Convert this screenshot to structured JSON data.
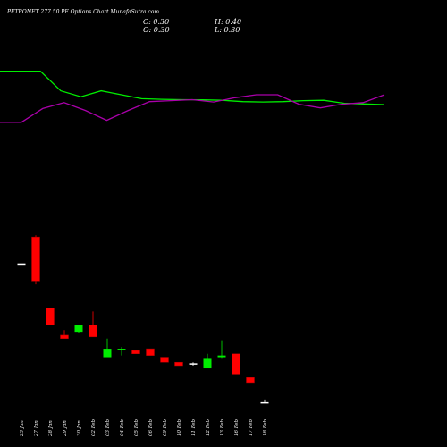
{
  "header": {
    "title": "PETRONET 277.50 PE Options  Chart MunafaSutra.com",
    "open": "O: 0.30",
    "close": "C: 0.30",
    "high": "H: 0.40",
    "low": "L: 0.30"
  },
  "colors": {
    "background": "#000000",
    "bullish": "#00ee00",
    "bearish": "#ff0000",
    "line_green": "#00ee00",
    "line_magenta": "#aa00aa",
    "text": "#ffffff"
  },
  "chart_data": {
    "type": "candlestick",
    "title": "PETRONET 277.50 PE Options  Chart MunafaSutra.com",
    "categories": [
      "23 Jan",
      "27 Jan",
      "28 Jan",
      "29 Jan",
      "30 Jan",
      "02 Feb",
      "03 Feb",
      "04 Feb",
      "05 Feb",
      "06 Feb",
      "09 Feb",
      "10 Feb",
      "11 Feb",
      "12 Feb",
      "13 Feb",
      "16 Feb",
      "17 Feb",
      "18 Feb"
    ],
    "candles": [
      {
        "open": 4.4,
        "high": 4.4,
        "low": 4.4,
        "close": 4.4
      },
      {
        "open": 5.2,
        "high": 5.25,
        "low": 3.8,
        "close": 3.9
      },
      {
        "open": 3.1,
        "high": 3.1,
        "low": 2.6,
        "close": 2.6
      },
      {
        "open": 2.3,
        "high": 2.45,
        "low": 2.2,
        "close": 2.2
      },
      {
        "open": 2.4,
        "high": 2.6,
        "low": 2.35,
        "close": 2.6
      },
      {
        "open": 2.6,
        "high": 3.0,
        "low": 2.25,
        "close": 2.25
      },
      {
        "open": 1.65,
        "high": 2.2,
        "low": 1.65,
        "close": 1.9
      },
      {
        "open": 1.85,
        "high": 1.95,
        "low": 1.7,
        "close": 1.9
      },
      {
        "open": 1.85,
        "high": 1.87,
        "low": 1.75,
        "close": 1.75
      },
      {
        "open": 1.9,
        "high": 1.9,
        "low": 1.7,
        "close": 1.7
      },
      {
        "open": 1.65,
        "high": 1.65,
        "low": 1.5,
        "close": 1.5
      },
      {
        "open": 1.5,
        "high": 1.5,
        "low": 1.4,
        "close": 1.4
      },
      {
        "open": 1.45,
        "high": 1.5,
        "low": 1.4,
        "close": 1.45
      },
      {
        "open": 1.32,
        "high": 1.75,
        "low": 1.32,
        "close": 1.6
      },
      {
        "open": 1.65,
        "high": 2.15,
        "low": 1.6,
        "close": 1.7
      },
      {
        "open": 1.75,
        "high": 1.75,
        "low": 1.15,
        "close": 1.15
      },
      {
        "open": 1.05,
        "high": 1.05,
        "low": 0.9,
        "close": 0.9
      },
      {
        "open": 0.3,
        "high": 0.4,
        "low": 0.3,
        "close": 0.3
      }
    ],
    "line_green": [
      82,
      82,
      82,
      72,
      69,
      72,
      70,
      68,
      67.7,
      67.5,
      67.4,
      67.2,
      66.5,
      66.3,
      66.5,
      67,
      67.2,
      65.7,
      65.3,
      65
    ],
    "line_magenta": [
      56,
      56,
      63,
      66,
      62,
      57,
      62,
      66.5,
      67,
      67.5,
      66.3,
      68.5,
      70,
      70,
      65.2,
      63.3,
      65.2,
      66,
      70
    ],
    "ylim": [
      0,
      5.6
    ],
    "grid": false,
    "legend": "none"
  }
}
